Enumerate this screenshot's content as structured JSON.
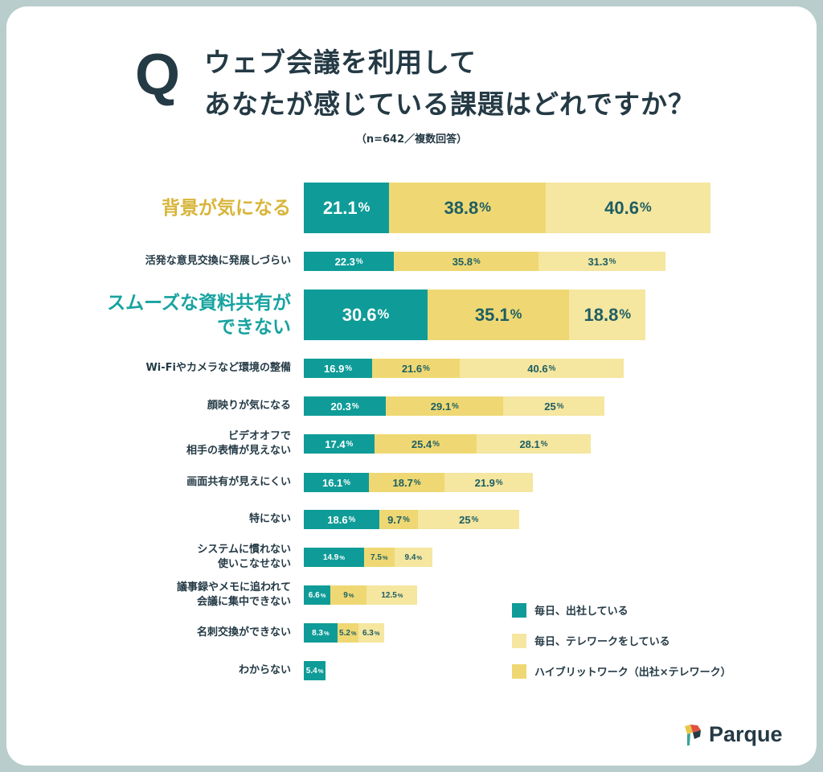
{
  "title": {
    "q": "Q",
    "line1": "ウェブ会議を利用して",
    "line2": "あなたが感じている課題はどれですか？",
    "note": "（n=642／複数回答）"
  },
  "colors": {
    "office": "#0f9c98",
    "hybrid": "#efd873",
    "telework": "#f5e6a0",
    "highlight_gold": "#d8b53a",
    "highlight_teal": "#17a3a0",
    "text_dark": "#243a45"
  },
  "chart_data": {
    "type": "bar",
    "orientation": "horizontal",
    "stacked": true,
    "unit": "%",
    "categories": [
      "背景が気になる",
      "活発な意見交換に発展しづらい",
      "スムーズな資料共有が\nできない",
      "Wi-Fiやカメラなど環境の整備",
      "顔映りが気になる",
      "ビデオオフで\n相手の表情が見えない",
      "画面共有が見えにくい",
      "特にない",
      "システムに慣れない\n使いこなせない",
      "議事録やメモに追われて\n会議に集中できない",
      "名刺交換ができない",
      "わからない"
    ],
    "highlighted": [
      0,
      2
    ],
    "series": [
      {
        "name": "毎日、出社している",
        "color": "#0f9c98",
        "values": [
          21.1,
          22.3,
          30.6,
          16.9,
          20.3,
          17.4,
          16.1,
          18.6,
          14.9,
          6.6,
          8.3,
          5.4
        ]
      },
      {
        "name": "ハイブリットワーク（出社×テレワーク）",
        "color": "#efd873",
        "values": [
          38.8,
          35.8,
          35.1,
          21.6,
          29.1,
          25.4,
          18.7,
          9.7,
          7.5,
          9,
          5.2,
          null
        ]
      },
      {
        "name": "毎日、テレワークをしている",
        "color": "#f5e6a0",
        "values": [
          40.6,
          31.3,
          18.8,
          40.6,
          25,
          28.1,
          21.9,
          25,
          9.4,
          12.5,
          6.3,
          null
        ]
      }
    ],
    "legend": {
      "placement": "bottom-right",
      "order": [
        "毎日、出社している",
        "毎日、テレワークをしている",
        "ハイブリットワーク（出社×テレワーク）"
      ]
    }
  },
  "logo": {
    "text": "Parque"
  }
}
